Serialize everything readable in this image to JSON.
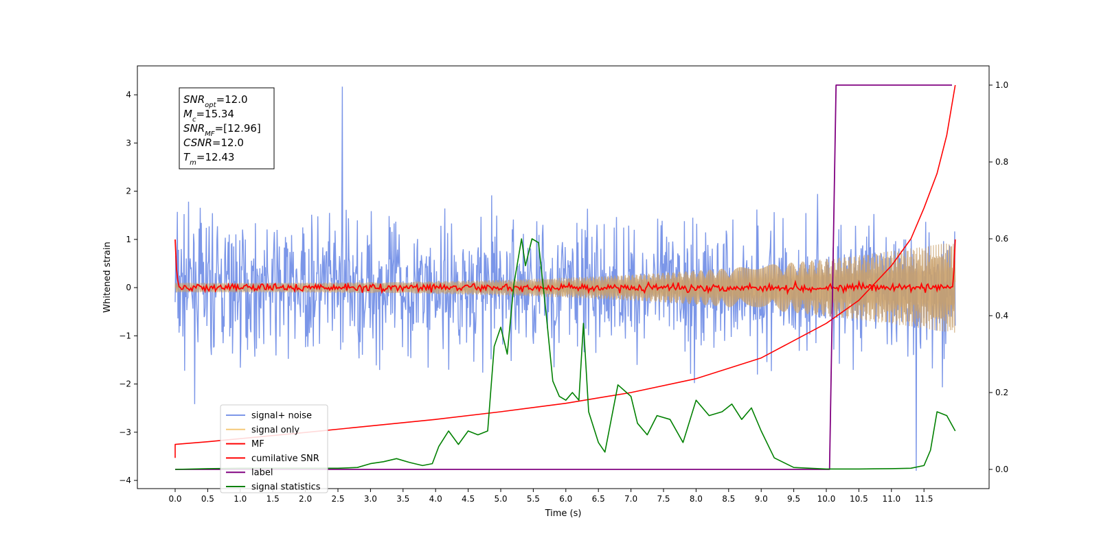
{
  "chart_data": {
    "type": "line",
    "xlabel": "Time (s)",
    "ylabel": "Whitened strain",
    "xlim": [
      -0.58,
      12.5
    ],
    "ylim": [
      -4.17,
      4.6
    ],
    "ylim_right": [
      -0.05,
      1.05
    ],
    "x_ticks": [
      "0.0",
      "0.5",
      "1.0",
      "1.5",
      "2.0",
      "2.5",
      "3.0",
      "3.5",
      "4.0",
      "4.5",
      "5.0",
      "5.5",
      "6.0",
      "6.5",
      "7.0",
      "7.5",
      "8.0",
      "8.5",
      "9.0",
      "9.5",
      "10.0",
      "10.5",
      "11.0",
      "11.5"
    ],
    "y_ticks": [
      "−4",
      "−3",
      "−2",
      "−1",
      "0",
      "1",
      "2",
      "3",
      "4"
    ],
    "y_ticks_right": [
      "0.0",
      "0.2",
      "0.4",
      "0.6",
      "0.8",
      "1.0"
    ],
    "legend_position": "lower left",
    "legend": [
      "signal+ noise",
      "signal only",
      "MF",
      "cumilative SNR",
      "label",
      "signal statistics"
    ],
    "annotation": [
      {
        "base": "SNR",
        "sub": "opt",
        "rest": "=12.0"
      },
      {
        "base": "M",
        "sub": "c",
        "rest": "=15.34"
      },
      {
        "base": "SNR",
        "sub": "MF",
        "rest": "=[12.96]"
      },
      {
        "base": "CSNR",
        "sub": "",
        "rest": "=12.0"
      },
      {
        "base": "T",
        "sub": "m",
        "rest": "=12.43"
      }
    ],
    "series": [
      {
        "name": "signal+ noise",
        "axis": "left",
        "color": "#7b96e8",
        "kind": "noise",
        "x_range": [
          0.0,
          11.98
        ],
        "envelope": [
          -2.3,
          2.3
        ],
        "max_spike": 4.17,
        "min_spike": -3.82
      },
      {
        "name": "signal only",
        "axis": "left",
        "color": "#f5c978",
        "kind": "chirp",
        "x_range": [
          0.0,
          11.98
        ],
        "amplitude_start": 0.1,
        "amplitude_end": 0.95
      },
      {
        "name": "MF",
        "axis": "left",
        "color": "#ff0000",
        "kind": "fluctuation",
        "x_range": [
          0.0,
          11.98
        ],
        "start_value": 1.0,
        "end_value": 1.0,
        "mean": 0.0,
        "ripple": 0.07
      },
      {
        "name": "cumilative SNR",
        "axis": "right",
        "color": "#ff0000",
        "x": [
          0.0,
          0.0,
          0.5,
          1.0,
          2.0,
          3.0,
          4.0,
          5.0,
          6.0,
          7.0,
          8.0,
          9.0,
          10.0,
          10.5,
          11.0,
          11.3,
          11.5,
          11.7,
          11.85,
          11.98
        ],
        "y": [
          0.03,
          0.065,
          0.072,
          0.08,
          0.096,
          0.113,
          0.13,
          0.15,
          0.172,
          0.2,
          0.236,
          0.29,
          0.38,
          0.44,
          0.53,
          0.6,
          0.68,
          0.77,
          0.87,
          1.0
        ]
      },
      {
        "name": "label",
        "axis": "right",
        "color": "#800080",
        "x": [
          0.0,
          10.05,
          10.15,
          11.93
        ],
        "y": [
          0.0,
          0.0,
          1.0,
          1.0
        ]
      },
      {
        "name": "signal statistics",
        "axis": "right",
        "color": "#008000",
        "x": [
          0.0,
          0.5,
          1.0,
          1.5,
          2.0,
          2.5,
          2.8,
          3.0,
          3.2,
          3.4,
          3.6,
          3.8,
          3.95,
          4.05,
          4.2,
          4.35,
          4.5,
          4.65,
          4.8,
          4.9,
          5.0,
          5.1,
          5.2,
          5.32,
          5.38,
          5.48,
          5.58,
          5.7,
          5.8,
          5.9,
          6.0,
          6.1,
          6.2,
          6.27,
          6.35,
          6.5,
          6.6,
          6.8,
          7.0,
          7.1,
          7.25,
          7.4,
          7.6,
          7.8,
          8.0,
          8.2,
          8.4,
          8.55,
          8.7,
          8.85,
          9.0,
          9.2,
          9.5,
          10.0,
          10.5,
          11.0,
          11.3,
          11.5,
          11.6,
          11.7,
          11.85,
          11.98
        ],
        "y": [
          0.0,
          0.002,
          0.003,
          0.003,
          0.003,
          0.003,
          0.005,
          0.015,
          0.02,
          0.028,
          0.018,
          0.01,
          0.015,
          0.06,
          0.1,
          0.065,
          0.1,
          0.09,
          0.1,
          0.32,
          0.37,
          0.3,
          0.48,
          0.6,
          0.53,
          0.6,
          0.59,
          0.4,
          0.23,
          0.19,
          0.18,
          0.2,
          0.18,
          0.38,
          0.15,
          0.07,
          0.045,
          0.22,
          0.19,
          0.12,
          0.09,
          0.14,
          0.13,
          0.07,
          0.18,
          0.14,
          0.15,
          0.17,
          0.13,
          0.16,
          0.1,
          0.03,
          0.005,
          0.001,
          0.001,
          0.002,
          0.003,
          0.01,
          0.05,
          0.15,
          0.14,
          0.1
        ]
      }
    ]
  }
}
